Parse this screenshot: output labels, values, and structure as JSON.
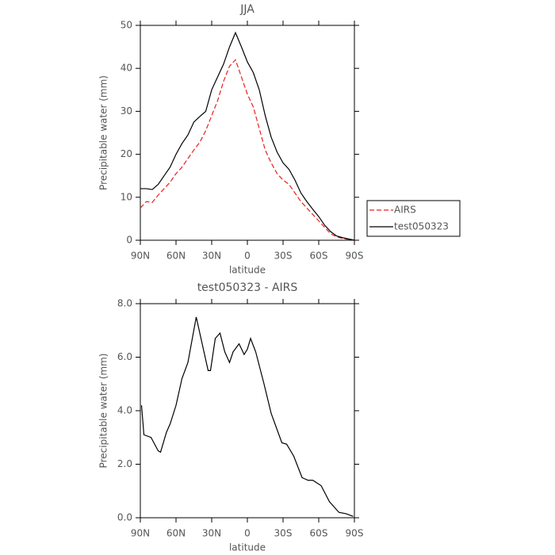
{
  "chart_data": [
    {
      "type": "line",
      "title": "JJA",
      "xlabel": "latitude",
      "ylabel": "Precipitable water (mm)",
      "xlim": [
        90,
        -90
      ],
      "xticks": [
        {
          "value": 90,
          "label": "90N"
        },
        {
          "value": 60,
          "label": "60N"
        },
        {
          "value": 30,
          "label": "30N"
        },
        0,
        {
          "value": -30,
          "label": "30S"
        },
        {
          "value": -60,
          "label": "60S"
        },
        {
          "value": -90,
          "label": "90S"
        }
      ],
      "ylim": [
        0,
        50
      ],
      "yticks": [
        0,
        10,
        20,
        30,
        40,
        50
      ],
      "x": [
        90,
        85,
        80,
        75,
        70,
        65,
        60,
        55,
        50,
        45,
        40,
        35,
        30,
        25,
        20,
        15,
        10,
        5,
        0,
        -5,
        -10,
        -15,
        -20,
        -25,
        -30,
        -35,
        -40,
        -45,
        -50,
        -55,
        -60,
        -65,
        -70,
        -75,
        -80,
        -85,
        -90
      ],
      "series": [
        {
          "name": "AIRS",
          "color": "#e8201c",
          "dash": true,
          "values": [
            7.5,
            9,
            8.8,
            10.5,
            12,
            13.5,
            15.5,
            17,
            19,
            21,
            22.8,
            25.5,
            29,
            32.5,
            37,
            40.5,
            42,
            38,
            34,
            31,
            26,
            21,
            18,
            15.5,
            14,
            13,
            11,
            9,
            7.5,
            6,
            4.5,
            3,
            1.5,
            0.8,
            0.4,
            0.2,
            0
          ]
        },
        {
          "name": "test050323",
          "color": "#000000",
          "dash": false,
          "values": [
            12,
            12,
            11.8,
            13,
            15,
            17,
            20,
            22.5,
            24.5,
            27.5,
            28.8,
            30,
            35,
            38,
            41,
            45,
            48.3,
            45,
            41.5,
            39,
            35,
            29,
            24,
            20.5,
            18,
            16.5,
            14,
            11,
            9,
            7.2,
            5.5,
            3.5,
            2,
            1,
            0.6,
            0.3,
            0
          ]
        }
      ]
    },
    {
      "type": "line",
      "title": "test050323 - AIRS",
      "xlabel": "latitude",
      "ylabel": "Precipitable water (mm)",
      "xlim": [
        90,
        -90
      ],
      "xticks": [
        {
          "value": 90,
          "label": "90N"
        },
        {
          "value": 60,
          "label": "60N"
        },
        {
          "value": 30,
          "label": "30N"
        },
        0,
        {
          "value": -30,
          "label": "30S"
        },
        {
          "value": -60,
          "label": "60S"
        },
        {
          "value": -90,
          "label": "90S"
        }
      ],
      "ylim": [
        0,
        8
      ],
      "yticks": [
        {
          "value": 0,
          "label": "0.0"
        },
        {
          "value": 2,
          "label": "2.0"
        },
        {
          "value": 4,
          "label": "4.0"
        },
        {
          "value": 6,
          "label": "6.0"
        },
        {
          "value": 8,
          "label": "8.0"
        }
      ],
      "x": [
        89,
        87,
        81,
        75,
        73,
        68,
        65,
        60,
        55,
        50,
        43,
        38,
        33,
        31,
        27,
        23,
        19,
        15,
        12,
        7,
        2.7,
        0,
        -2.7,
        -7,
        -14,
        -20,
        -29,
        -33,
        -39,
        -46,
        -51,
        -55,
        -62,
        -69,
        -77,
        -83,
        -89
      ],
      "series": [
        {
          "color": "#000000",
          "dash": false,
          "values": [
            4.2,
            3.1,
            3.0,
            2.5,
            2.45,
            3.2,
            3.5,
            4.2,
            5.2,
            5.8,
            7.5,
            6.5,
            5.5,
            5.5,
            6.7,
            6.9,
            6.2,
            5.8,
            6.2,
            6.5,
            6.1,
            6.3,
            6.7,
            6.2,
            5.0,
            3.9,
            2.8,
            2.75,
            2.3,
            1.5,
            1.4,
            1.4,
            1.2,
            0.6,
            0.2,
            0.15,
            0.05
          ]
        }
      ]
    }
  ]
}
